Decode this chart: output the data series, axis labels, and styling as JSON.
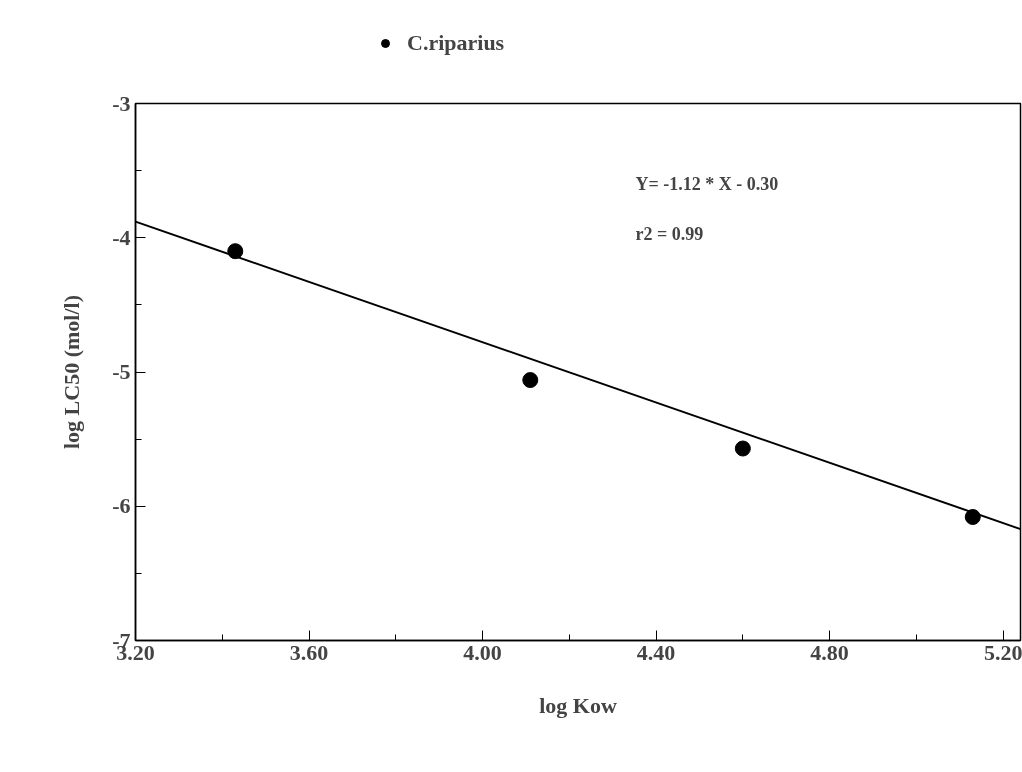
{
  "chart_data": {
    "type": "scatter",
    "xlabel": "log Kow",
    "ylabel": "log LC50 (mol/l)",
    "annotations": [
      "Y= -1.12 * X - 0.30",
      "r2 = 0.99"
    ],
    "xlim": [
      3.2,
      5.24
    ],
    "ylim": [
      -7,
      -3
    ],
    "xticks": [
      {
        "value": 3.2,
        "label": "3.20"
      },
      {
        "value": 3.6,
        "label": "3.60"
      },
      {
        "value": 4.0,
        "label": "4.00"
      },
      {
        "value": 4.4,
        "label": "4.40"
      },
      {
        "value": 4.8,
        "label": "4.80"
      },
      {
        "value": 5.2,
        "label": "5.20"
      }
    ],
    "yticks": [
      -7,
      -6,
      -5,
      -4,
      -3
    ],
    "grid": false,
    "legend": "top left",
    "series": [
      {
        "name": "C.riparius",
        "type": "scatter",
        "marker": "circle",
        "color": "#000000",
        "x": [
          3.43,
          4.11,
          4.6,
          5.13
        ],
        "values": [
          -4.1,
          -5.06,
          -5.57,
          -6.08
        ]
      },
      {
        "type": "line",
        "color": "#000000",
        "x": [
          3.2,
          5.24
        ],
        "values": [
          -3.88,
          -6.17
        ],
        "line_style": "solid"
      }
    ]
  }
}
